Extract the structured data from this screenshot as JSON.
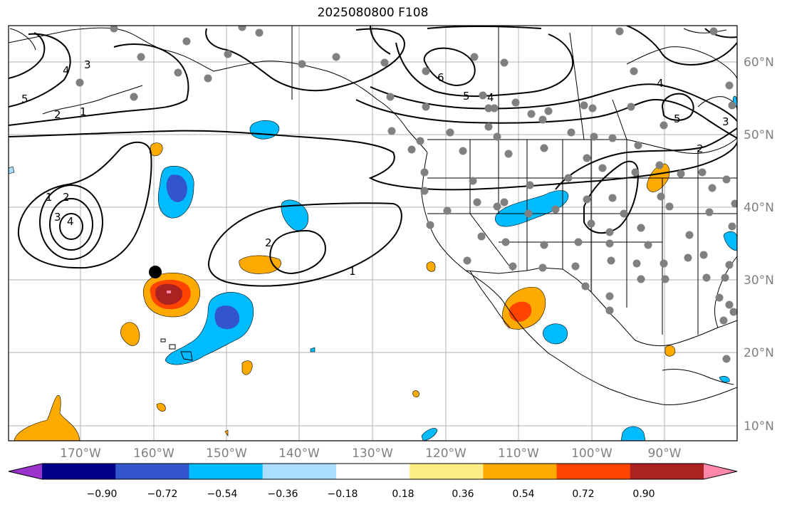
{
  "title": "2025080800 F108",
  "lon_labels": [
    "170°W",
    "160°W",
    "150°W",
    "140°W",
    "130°W",
    "120°W",
    "110°W",
    "100°W",
    "90°W"
  ],
  "lat_labels": [
    "60°N",
    "50°N",
    "40°N",
    "30°N",
    "20°N",
    "10°N"
  ],
  "colorbar": {
    "ticks": [
      "−0.90",
      "−0.72",
      "−0.54",
      "−0.36",
      "−0.18",
      "0.18",
      "0.36",
      "0.54",
      "0.72",
      "0.90"
    ],
    "colors": [
      "#9933cc",
      "#000088",
      "#3355cc",
      "#00bbff",
      "#aaddff",
      "#ffffff",
      "#ffee88",
      "#ffaa00",
      "#ff4400",
      "#aa2222",
      "#ff88aa"
    ]
  },
  "contour_labels": [
    "5",
    "4",
    "3",
    "2",
    "1",
    "1",
    "2",
    "3",
    "4",
    "2",
    "1",
    "6",
    "5",
    "4",
    "4",
    "5",
    "2",
    "3"
  ],
  "colors": {
    "contour": "#000000",
    "station": "#808080",
    "marker": "#000000",
    "grid": "#b0b0b0"
  }
}
